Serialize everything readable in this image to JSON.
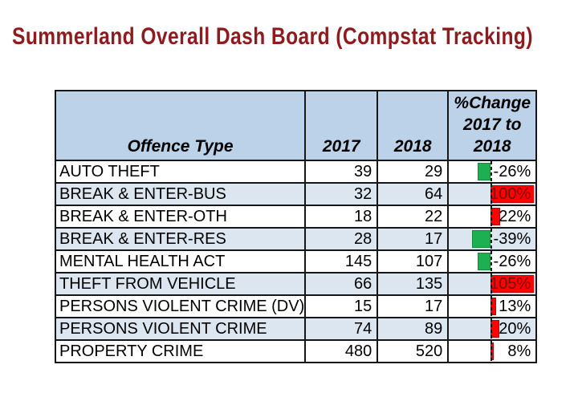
{
  "title": "Summerland Overall Dash Board (Compstat Tracking)",
  "colors": {
    "title_text": "#8E1B1E",
    "header_bg": "#BCD2E8",
    "band_row_bg": "#DCE6F1",
    "plain_row_bg": "#FFFFFF",
    "grid_line": "#161616",
    "bar_negative_fill": "#1CB052",
    "bar_negative_border": "#128A3E",
    "bar_positive_fill": "#FE0100",
    "bar_positive_border": "#BB0000",
    "in_bar_text": "#6E1113",
    "cell_text": "#000000"
  },
  "table": {
    "columns": [
      {
        "key": "offence",
        "label": "Offence Type"
      },
      {
        "key": "y2017",
        "label": "2017"
      },
      {
        "key": "y2018",
        "label": "2018"
      },
      {
        "key": "change",
        "label": "%Change 2017 to 2018",
        "lines": [
          "%Change",
          "2017 to",
          "2018"
        ]
      }
    ],
    "rows": [
      {
        "offence": "AUTO THEFT",
        "y2017": "39",
        "y2018": "29",
        "change_pct": -26,
        "change_label": "-26%"
      },
      {
        "offence": "BREAK & ENTER-BUS",
        "y2017": "32",
        "y2018": "64",
        "change_pct": 100,
        "change_label": "100%"
      },
      {
        "offence": "BREAK & ENTER-OTH",
        "y2017": "18",
        "y2018": "22",
        "change_pct": 22,
        "change_label": "22%"
      },
      {
        "offence": "BREAK & ENTER-RES",
        "y2017": "28",
        "y2018": "17",
        "change_pct": -39,
        "change_label": "-39%"
      },
      {
        "offence": "MENTAL HEALTH ACT",
        "y2017": "145",
        "y2018": "107",
        "change_pct": -26,
        "change_label": "-26%"
      },
      {
        "offence": "THEFT FROM VEHICLE",
        "y2017": "66",
        "y2018": "135",
        "change_pct": 105,
        "change_label": "105%"
      },
      {
        "offence": "PERSONS VIOLENT CRIME (DV)",
        "y2017": "15",
        "y2018": "17",
        "change_pct": 13,
        "change_label": "13%"
      },
      {
        "offence": "PERSONS VIOLENT CRIME",
        "y2017": "74",
        "y2018": "89",
        "change_pct": 20,
        "change_label": "20%"
      },
      {
        "offence": "PROPERTY CRIME",
        "y2017": "480",
        "y2018": "520",
        "change_pct": 8,
        "change_label": "8%"
      }
    ]
  },
  "chart_data": {
    "type": "table",
    "title": "Summerland Overall Dash Board (Compstat Tracking)",
    "categories": [
      "AUTO THEFT",
      "BREAK & ENTER-BUS",
      "BREAK & ENTER-OTH",
      "BREAK & ENTER-RES",
      "MENTAL HEALTH ACT",
      "THEFT FROM VEHICLE",
      "PERSONS VIOLENT CRIME (DV)",
      "PERSONS VIOLENT CRIME",
      "PROPERTY CRIME"
    ],
    "series": [
      {
        "name": "2017",
        "values": [
          39,
          32,
          18,
          28,
          145,
          66,
          15,
          74,
          480
        ]
      },
      {
        "name": "2018",
        "values": [
          29,
          64,
          22,
          17,
          107,
          135,
          17,
          89,
          520
        ]
      },
      {
        "name": "%Change 2017 to 2018",
        "values": [
          -26,
          100,
          22,
          -39,
          -26,
          105,
          13,
          20,
          8
        ]
      }
    ],
    "databar": {
      "column": "%Change 2017 to 2018",
      "negative_color": "green",
      "positive_color": "red",
      "axis_style": "dashed-vertical",
      "value_range_shown": [
        -39,
        105
      ]
    },
    "layout": {
      "row_banding": "alternate light blue",
      "header_align": "center-bottom",
      "numbers_align": "right"
    }
  }
}
